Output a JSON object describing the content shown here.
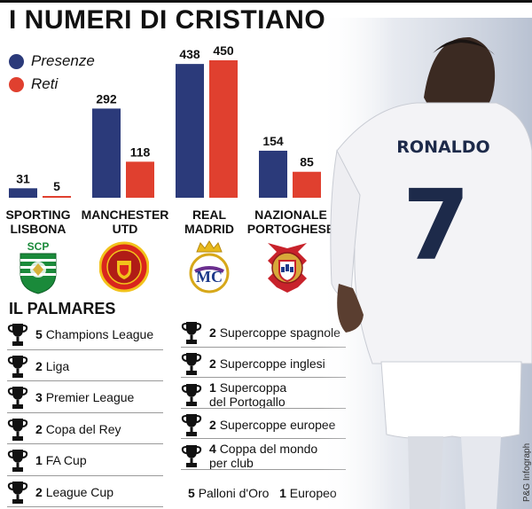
{
  "title": "I NUMERI DI CRISTIANO",
  "legend": [
    {
      "label": "Presenze",
      "color": "#2b3a7a"
    },
    {
      "label": "Reti",
      "color": "#e0402f"
    }
  ],
  "chart_data": {
    "type": "bar",
    "title": "I NUMERI DI CRISTIANO",
    "categories": [
      "SPORTING LISBONA",
      "MANCHESTER UTD",
      "REAL MADRID",
      "NAZIONALE PORTOGHESE"
    ],
    "series": [
      {
        "name": "Presenze",
        "values": [
          31,
          292,
          438,
          154
        ],
        "color": "#2b3a7a"
      },
      {
        "name": "Reti",
        "values": [
          5,
          118,
          450,
          85
        ],
        "color": "#e0402f"
      }
    ],
    "xlabel": "",
    "ylabel": "",
    "ylim": [
      0,
      450
    ],
    "grid": false,
    "legend_position": "top-left"
  },
  "clubs": [
    {
      "line1": "SPORTING",
      "line2": "LISBONA",
      "crest": "sporting-crest-icon"
    },
    {
      "line1": "MANCHESTER",
      "line2": "UTD",
      "crest": "manchester-united-crest-icon"
    },
    {
      "line1": "REAL",
      "line2": "MADRID",
      "crest": "real-madrid-crest-icon"
    },
    {
      "line1": "NAZIONALE",
      "line2": "PORTOGHESE",
      "crest": "portugal-crest-icon"
    }
  ],
  "palmares": {
    "title": "IL PALMARES",
    "left": [
      {
        "count": "5",
        "name": "Champions League",
        "icon": "big-ears-cup-icon"
      },
      {
        "count": "2",
        "name": "Liga",
        "icon": "liga-trophy-icon"
      },
      {
        "count": "3",
        "name": "Premier League",
        "icon": "premier-trophy-icon"
      },
      {
        "count": "2",
        "name": "Copa del Rey",
        "icon": "copa-del-rey-icon"
      },
      {
        "count": "1",
        "name": "FA Cup",
        "icon": "fa-cup-icon"
      },
      {
        "count": "2",
        "name": "League Cup",
        "icon": "league-cup-icon"
      }
    ],
    "right": [
      {
        "count": "2",
        "name": "Supercoppe spagnole",
        "name2": "",
        "icon": "supercopa-spain-icon"
      },
      {
        "count": "2",
        "name": "Supercoppe inglesi",
        "name2": "",
        "icon": "community-shield-icon"
      },
      {
        "count": "1",
        "name": "Supercoppa",
        "name2": "del Portogallo",
        "icon": "supertaca-icon"
      },
      {
        "count": "2",
        "name": "Supercoppe europee",
        "name2": "",
        "icon": "uefa-supercup-icon"
      },
      {
        "count": "4",
        "name": "Coppa del mondo",
        "name2": "per club",
        "icon": "club-world-cup-icon"
      }
    ],
    "extra": {
      "ballon_count": "5",
      "ballon_name": "Palloni d'Oro",
      "euro_count": "1",
      "euro_name": "Europeo"
    }
  },
  "photo": {
    "shirt_name": "RONALDO",
    "shirt_number": "7"
  },
  "credit": "P&G Infograph"
}
